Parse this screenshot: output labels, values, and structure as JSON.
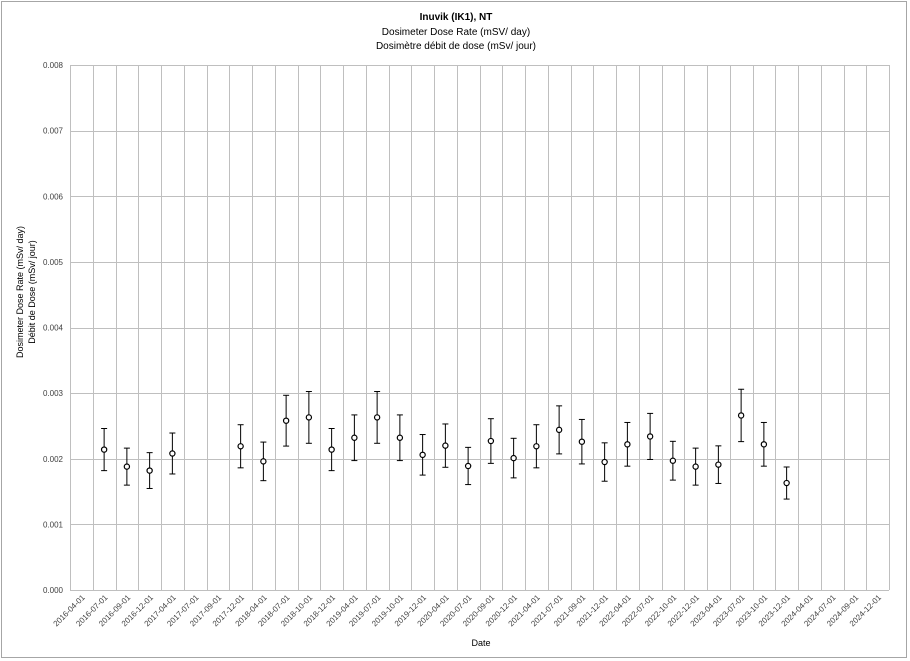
{
  "chart_data": {
    "type": "scatter",
    "title": "Inuvik (IK1), NT",
    "subtitle": "Dosimeter Dose Rate (mSV/ day)",
    "subtitle_fr": "Dosimètre débit de dose (mSv/ jour)",
    "xlabel": "Date",
    "ylabel": "Dosimeter Dose Rate (mSv/ day)",
    "ylabel_fr": "Débit de Dose (mSv/ jour)",
    "ylim": [
      0,
      0.008
    ],
    "yticks": [
      "0.000",
      "0.001",
      "0.002",
      "0.003",
      "0.004",
      "0.005",
      "0.006",
      "0.007",
      "0.008"
    ],
    "xticks": [
      "2016-04-01",
      "2016-07-01",
      "2016-09-01",
      "2016-12-01",
      "2017-04-01",
      "2017-07-01",
      "2017-09-01",
      "2017-12-01",
      "2018-04-01",
      "2018-07-01",
      "2018-10-01",
      "2018-12-01",
      "2019-04-01",
      "2019-07-01",
      "2019-10-01",
      "2019-12-01",
      "2020-04-01",
      "2020-07-01",
      "2020-09-01",
      "2020-12-01",
      "2021-04-01",
      "2021-07-01",
      "2021-09-01",
      "2021-12-01",
      "2022-04-01",
      "2022-07-01",
      "2022-10-01",
      "2022-12-01",
      "2023-04-01",
      "2023-07-01",
      "2023-10-01",
      "2023-12-01",
      "2024-04-01",
      "2024-07-01",
      "2024-09-01",
      "2024-12-01"
    ],
    "grid": true,
    "marker": "open-circle",
    "errorbar_fraction": 0.15,
    "points": [
      {
        "x": "2016-07-01",
        "y": 0.00214
      },
      {
        "x": "2016-09-01",
        "y": 0.00188
      },
      {
        "x": "2016-12-01",
        "y": 0.00182
      },
      {
        "x": "2017-04-01",
        "y": 0.00208
      },
      {
        "x": "2017-12-01",
        "y": 0.00219
      },
      {
        "x": "2018-04-01",
        "y": 0.00196
      },
      {
        "x": "2018-07-01",
        "y": 0.00258
      },
      {
        "x": "2018-10-01",
        "y": 0.00263
      },
      {
        "x": "2018-12-01",
        "y": 0.00214
      },
      {
        "x": "2019-04-01",
        "y": 0.00232
      },
      {
        "x": "2019-07-01",
        "y": 0.00263
      },
      {
        "x": "2019-10-01",
        "y": 0.00232
      },
      {
        "x": "2019-12-01",
        "y": 0.00206
      },
      {
        "x": "2020-04-01",
        "y": 0.0022
      },
      {
        "x": "2020-07-01",
        "y": 0.00189
      },
      {
        "x": "2020-09-01",
        "y": 0.00227
      },
      {
        "x": "2020-12-01",
        "y": 0.00201
      },
      {
        "x": "2021-04-01",
        "y": 0.00219
      },
      {
        "x": "2021-07-01",
        "y": 0.00244
      },
      {
        "x": "2021-09-01",
        "y": 0.00226
      },
      {
        "x": "2021-12-01",
        "y": 0.00195
      },
      {
        "x": "2022-04-01",
        "y": 0.00222
      },
      {
        "x": "2022-07-01",
        "y": 0.00234
      },
      {
        "x": "2022-10-01",
        "y": 0.00197
      },
      {
        "x": "2022-12-01",
        "y": 0.00188
      },
      {
        "x": "2023-04-01",
        "y": 0.00191
      },
      {
        "x": "2023-07-01",
        "y": 0.00266
      },
      {
        "x": "2023-10-01",
        "y": 0.00222
      },
      {
        "x": "2023-12-01",
        "y": 0.00163
      }
    ],
    "colors": {
      "grid": "#bfbfbf",
      "marker": "#000000",
      "text": "#404040"
    }
  }
}
